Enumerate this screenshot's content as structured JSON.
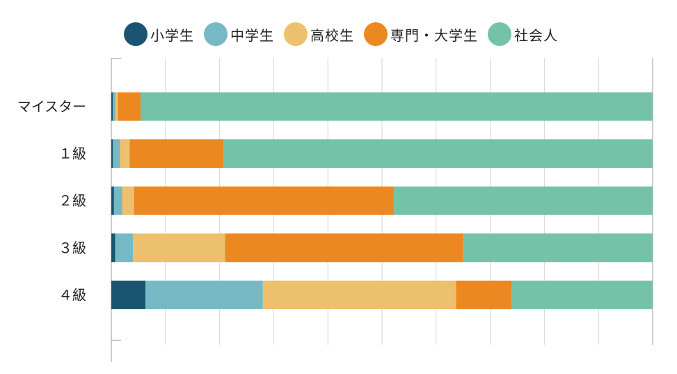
{
  "chart_data": {
    "type": "bar",
    "orientation": "horizontal",
    "stacked": true,
    "percent_stacked": true,
    "categories": [
      "マイスター",
      "１級",
      "２級",
      "３級",
      "４級"
    ],
    "series": [
      {
        "name": "小学生",
        "color": "#1b5470",
        "values": [
          0.3,
          0.3,
          0.5,
          0.7,
          6.3
        ]
      },
      {
        "name": "中学生",
        "color": "#76b9c5",
        "values": [
          0.5,
          1.3,
          1.5,
          3.3,
          21.7
        ]
      },
      {
        "name": "高校生",
        "color": "#ecc06d",
        "values": [
          0.4,
          1.8,
          2.2,
          17.0,
          35.7
        ]
      },
      {
        "name": "専門・大学生",
        "color": "#ec8820",
        "values": [
          4.2,
          17.3,
          48.0,
          44.0,
          10.3
        ]
      },
      {
        "name": "社会人",
        "color": "#74c3a8",
        "values": [
          94.6,
          79.3,
          47.8,
          35.0,
          26.0
        ]
      }
    ],
    "xlim": [
      0,
      100
    ],
    "grid": true,
    "legend_position": "top"
  }
}
